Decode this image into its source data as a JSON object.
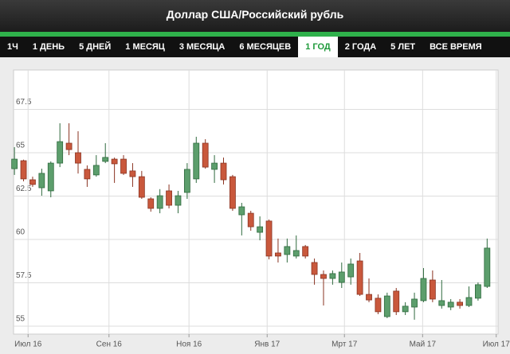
{
  "header": {
    "title": "Доллар США/Российский рубль"
  },
  "tabs": [
    "1Ч",
    "1 ДЕНЬ",
    "5 ДНЕЙ",
    "1 МЕСЯЦ",
    "3 МЕСЯЦА",
    "6 МЕСЯЦЕВ",
    "1 ГОД",
    "2 ГОДА",
    "5 ЛЕТ",
    "ВСЕ ВРЕМЯ"
  ],
  "selected_tab": 6,
  "chart_data": {
    "type": "candlestick",
    "x": [
      0,
      1,
      2,
      3,
      4,
      5,
      6,
      7,
      8,
      9,
      10,
      11,
      12,
      13,
      14,
      15,
      16,
      17,
      18,
      19,
      20,
      21,
      22,
      23,
      24,
      25,
      26,
      27,
      28,
      29,
      30,
      31,
      32,
      33,
      34,
      35,
      36,
      37,
      38,
      39,
      40,
      41,
      42,
      43,
      44,
      45,
      46,
      47,
      48,
      49,
      50,
      51,
      52
    ],
    "open": [
      64.08,
      64.54,
      63.44,
      62.98,
      62.8,
      64.4,
      65.55,
      65.0,
      64.04,
      63.72,
      64.5,
      64.63,
      64.63,
      63.95,
      63.62,
      62.34,
      61.79,
      62.8,
      61.97,
      62.71,
      63.49,
      65.55,
      64.04,
      64.4,
      63.62,
      61.42,
      61.51,
      60.41,
      61.06,
      59.22,
      59.13,
      59.04,
      59.59,
      58.67,
      57.98,
      57.75,
      57.52,
      57.84,
      58.76,
      56.83,
      56.61,
      55.55,
      57.02,
      55.83,
      56.1,
      56.47,
      57.66,
      56.19,
      56.1,
      56.38,
      56.19,
      56.61,
      57.29
    ],
    "high": [
      65.32,
      64.6,
      63.62,
      64.08,
      64.5,
      66.7,
      66.7,
      66.24,
      64.27,
      64.86,
      65.55,
      64.72,
      64.86,
      64.4,
      63.95,
      62.43,
      62.9,
      63.17,
      62.8,
      64.4,
      65.92,
      65.78,
      64.86,
      64.72,
      63.72,
      62.11,
      61.65,
      61.33,
      61.15,
      60.05,
      60.05,
      60.23,
      59.68,
      58.9,
      58.21,
      58.21,
      58.67,
      58.9,
      59.22,
      57.75,
      56.83,
      56.93,
      57.2,
      56.38,
      56.93,
      58.35,
      58.21,
      57.66,
      56.56,
      56.56,
      57.29,
      57.52,
      60.05
    ],
    "low": [
      63.72,
      63.35,
      63.03,
      62.52,
      62.43,
      64.17,
      64.86,
      63.8,
      63.03,
      63.62,
      64.4,
      63.26,
      63.72,
      63.03,
      62.34,
      61.6,
      61.51,
      61.79,
      61.51,
      62.34,
      63.26,
      64.08,
      63.26,
      63.17,
      61.65,
      60.23,
      60.5,
      59.95,
      58.85,
      58.67,
      58.67,
      58.9,
      58.9,
      57.39,
      56.19,
      57.39,
      57.2,
      57.39,
      56.74,
      56.38,
      55.69,
      55.46,
      55.64,
      55.64,
      55.37,
      56.38,
      56.38,
      56.01,
      55.92,
      56.01,
      56.1,
      56.47,
      57.2
    ],
    "close": [
      64.63,
      63.49,
      63.17,
      63.81,
      64.4,
      65.64,
      65.18,
      64.4,
      63.49,
      64.27,
      64.73,
      64.36,
      63.81,
      63.62,
      62.43,
      61.79,
      62.52,
      61.97,
      62.52,
      64.04,
      65.55,
      64.17,
      64.4,
      63.44,
      61.79,
      61.88,
      60.73,
      60.73,
      59.04,
      59.04,
      59.59,
      59.36,
      59.04,
      57.98,
      57.75,
      58.03,
      58.12,
      58.58,
      56.83,
      56.51,
      55.83,
      56.74,
      55.83,
      56.15,
      56.56,
      57.75,
      56.56,
      56.47,
      56.38,
      56.19,
      56.65,
      57.39,
      59.5
    ],
    "up_color": "#5c9e6c",
    "down_color": "#c9583c",
    "xlim": [
      -0.1,
      53.2
    ],
    "xticks": [
      {
        "value": 1.5,
        "label": "Июл 16"
      },
      {
        "value": 10.4,
        "label": "Сен 16"
      },
      {
        "value": 19.2,
        "label": "Ноя 16"
      },
      {
        "value": 27.8,
        "label": "Янв 17"
      },
      {
        "value": 36.3,
        "label": "Мрт 17"
      },
      {
        "value": 44.9,
        "label": "Май 17"
      },
      {
        "value": 53.0,
        "label": "Июл 17"
      }
    ],
    "ylim": [
      54.54,
      69.77
    ],
    "yticks": [
      55,
      57.5,
      60,
      62.5,
      65,
      67.5
    ],
    "grid": true
  }
}
